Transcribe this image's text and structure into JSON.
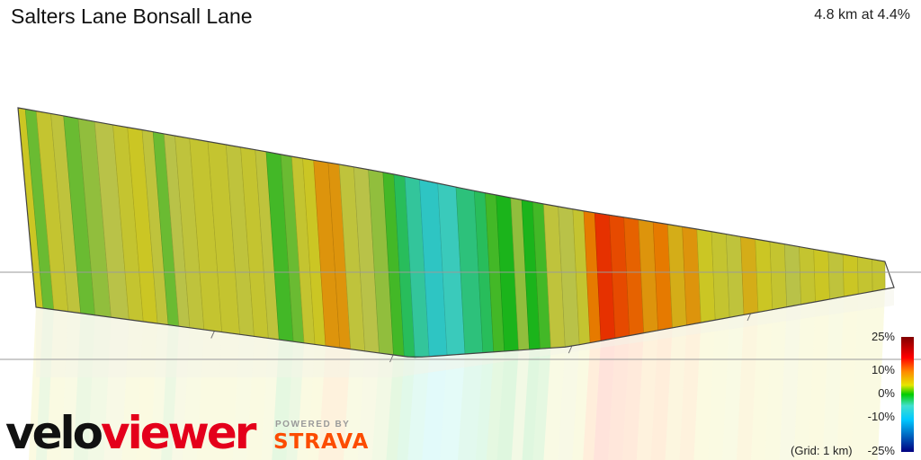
{
  "header": {
    "title": "Salters Lane Bonsall Lane",
    "summary": "4.8 km at 4.4%"
  },
  "legend": {
    "labels": [
      "25%",
      "10%",
      "0%",
      "-10%",
      "-25%"
    ],
    "values": [
      25,
      10,
      0,
      -10,
      -25
    ],
    "grid_note": "(Grid: 1 km)"
  },
  "branding": {
    "logo_velo": "velo",
    "logo_viewer": "viewer",
    "powered_by": "POWERED BY",
    "strava": "STRAVA"
  },
  "colors": {
    "brand_red": "#e4001b",
    "strava_orange": "#fc4c02",
    "gradient_scale": [
      "#000080",
      "#00c8ff",
      "#40e0d0",
      "#00cc00",
      "#e6e600",
      "#ff8800",
      "#ff0000",
      "#800000"
    ]
  },
  "chart_data": {
    "type": "area",
    "distance_km": 4.8,
    "average_grade_percent": 4.4,
    "grade_range_percent": [
      -25,
      25
    ],
    "grid_km": 1,
    "grade_profile": [
      {
        "x": 0.0,
        "grade": 7
      },
      {
        "x": 0.04,
        "grade": 2
      },
      {
        "x": 0.1,
        "grade": 6
      },
      {
        "x": 0.18,
        "grade": 5
      },
      {
        "x": 0.25,
        "grade": 2
      },
      {
        "x": 0.33,
        "grade": 3
      },
      {
        "x": 0.42,
        "grade": 4
      },
      {
        "x": 0.52,
        "grade": 6
      },
      {
        "x": 0.6,
        "grade": 7
      },
      {
        "x": 0.68,
        "grade": 5
      },
      {
        "x": 0.74,
        "grade": 2
      },
      {
        "x": 0.8,
        "grade": 4
      },
      {
        "x": 0.86,
        "grade": 5
      },
      {
        "x": 0.94,
        "grade": 6
      },
      {
        "x": 1.04,
        "grade": 6
      },
      {
        "x": 1.14,
        "grade": 5
      },
      {
        "x": 1.22,
        "grade": 6
      },
      {
        "x": 1.3,
        "grade": 5
      },
      {
        "x": 1.36,
        "grade": 1
      },
      {
        "x": 1.44,
        "grade": 2
      },
      {
        "x": 1.5,
        "grade": 6
      },
      {
        "x": 1.56,
        "grade": 7
      },
      {
        "x": 1.62,
        "grade": 9
      },
      {
        "x": 1.7,
        "grade": 9
      },
      {
        "x": 1.76,
        "grade": 5
      },
      {
        "x": 1.84,
        "grade": 4
      },
      {
        "x": 1.92,
        "grade": 3
      },
      {
        "x": 2.0,
        "grade": 1
      },
      {
        "x": 2.06,
        "grade": -2
      },
      {
        "x": 2.12,
        "grade": -4
      },
      {
        "x": 2.2,
        "grade": -6
      },
      {
        "x": 2.3,
        "grade": -5
      },
      {
        "x": 2.4,
        "grade": -3
      },
      {
        "x": 2.5,
        "grade": -2
      },
      {
        "x": 2.56,
        "grade": 1
      },
      {
        "x": 2.62,
        "grade": 0
      },
      {
        "x": 2.7,
        "grade": 3
      },
      {
        "x": 2.76,
        "grade": 0
      },
      {
        "x": 2.82,
        "grade": 1
      },
      {
        "x": 2.88,
        "grade": 5
      },
      {
        "x": 2.96,
        "grade": 4
      },
      {
        "x": 3.04,
        "grade": 6
      },
      {
        "x": 3.1,
        "grade": 10
      },
      {
        "x": 3.16,
        "grade": 13
      },
      {
        "x": 3.24,
        "grade": 12
      },
      {
        "x": 3.32,
        "grade": 11
      },
      {
        "x": 3.4,
        "grade": 9
      },
      {
        "x": 3.48,
        "grade": 10
      },
      {
        "x": 3.56,
        "grade": 8
      },
      {
        "x": 3.64,
        "grade": 9
      },
      {
        "x": 3.72,
        "grade": 7
      },
      {
        "x": 3.8,
        "grade": 6
      },
      {
        "x": 3.88,
        "grade": 5
      },
      {
        "x": 3.96,
        "grade": 8
      },
      {
        "x": 4.04,
        "grade": 7
      },
      {
        "x": 4.12,
        "grade": 6
      },
      {
        "x": 4.2,
        "grade": 4
      },
      {
        "x": 4.28,
        "grade": 6
      },
      {
        "x": 4.36,
        "grade": 7
      },
      {
        "x": 4.44,
        "grade": 5
      },
      {
        "x": 4.52,
        "grade": 7
      },
      {
        "x": 4.6,
        "grade": 6
      },
      {
        "x": 4.68,
        "grade": 6
      },
      {
        "x": 4.75,
        "grade": 6
      }
    ]
  }
}
